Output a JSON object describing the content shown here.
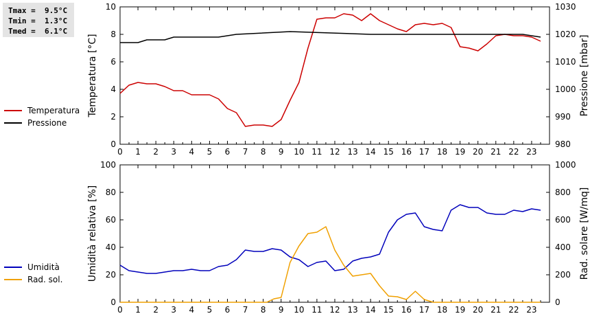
{
  "stats": {
    "tmax": "Tmax =  9.5°C",
    "tmin": "Tmin =  1.3°C",
    "tmed": "Tmed =  6.1°C"
  },
  "legend_top": [
    {
      "label": "Temperatura",
      "color": "#cc0000"
    },
    {
      "label": "Pressione",
      "color": "#000000"
    }
  ],
  "legend_bottom": [
    {
      "label": "Umidità",
      "color": "#0000bb"
    },
    {
      "label": "Rad. sol.",
      "color": "#f0a000"
    }
  ],
  "chart_data": [
    {
      "type": "line",
      "ylabel": "Temperatura [°C]",
      "y2label": "Pressione [mbar]",
      "xlim": [
        0,
        24
      ],
      "ylim": [
        0,
        10
      ],
      "y2lim": [
        980,
        1030
      ],
      "xticks": [
        "0",
        "1",
        "2",
        "3",
        "4",
        "5",
        "6",
        "7",
        "8",
        "9",
        "10",
        "11",
        "12",
        "13",
        "14",
        "15",
        "16",
        "17",
        "18",
        "19",
        "20",
        "21",
        "22",
        "23"
      ],
      "yticks": [
        "0",
        "2",
        "4",
        "6",
        "8",
        "10"
      ],
      "y2ticks": [
        "980",
        "990",
        "1000",
        "1010",
        "1020",
        "1030"
      ],
      "series": [
        {
          "name": "Temperatura",
          "axis": "left",
          "color": "#cc0000",
          "x": [
            0,
            0.5,
            1,
            1.5,
            2,
            2.5,
            3,
            3.5,
            4,
            4.5,
            5,
            5.5,
            6,
            6.5,
            7,
            7.5,
            8,
            8.5,
            9,
            9.5,
            10,
            10.5,
            11,
            11.5,
            12,
            12.5,
            13,
            13.5,
            14,
            14.5,
            15,
            15.5,
            16,
            16.5,
            17,
            17.5,
            18,
            18.5,
            19,
            19.5,
            20,
            20.5,
            21,
            21.5,
            22,
            22.5,
            23,
            23.5
          ],
          "y": [
            3.7,
            4.3,
            4.5,
            4.4,
            4.4,
            4.2,
            3.9,
            3.9,
            3.6,
            3.6,
            3.6,
            3.3,
            2.6,
            2.3,
            1.3,
            1.4,
            1.4,
            1.3,
            1.8,
            3.2,
            4.5,
            7.0,
            9.1,
            9.2,
            9.2,
            9.5,
            9.4,
            9.0,
            9.5,
            9.0,
            8.7,
            8.4,
            8.2,
            8.7,
            8.8,
            8.7,
            8.8,
            8.5,
            7.1,
            7.0,
            6.8,
            7.3,
            7.9,
            8.0,
            7.9,
            7.9,
            7.8,
            7.5
          ]
        },
        {
          "name": "Pressione",
          "axis": "right",
          "color": "#000000",
          "x": [
            0,
            1,
            1.5,
            2.5,
            3,
            5.5,
            6.5,
            9.5,
            14,
            22.5,
            23,
            23.5
          ],
          "y": [
            1017,
            1017,
            1018,
            1018,
            1019,
            1019,
            1020,
            1021,
            1020,
            1020,
            1019.5,
            1019
          ]
        }
      ]
    },
    {
      "type": "line",
      "ylabel": "Umidità relativa [%]",
      "y2label": "Rad. solare [W/mq]",
      "xlim": [
        0,
        24
      ],
      "ylim": [
        0,
        100
      ],
      "y2lim": [
        0,
        1000
      ],
      "xticks": [
        "0",
        "1",
        "2",
        "3",
        "4",
        "5",
        "6",
        "7",
        "8",
        "9",
        "10",
        "11",
        "12",
        "13",
        "14",
        "15",
        "16",
        "17",
        "18",
        "19",
        "20",
        "21",
        "22",
        "23"
      ],
      "yticks": [
        "0",
        "20",
        "40",
        "60",
        "80",
        "100"
      ],
      "y2ticks": [
        "0",
        "200",
        "400",
        "600",
        "800",
        "1000"
      ],
      "series": [
        {
          "name": "Umidità",
          "axis": "left",
          "color": "#0000bb",
          "x": [
            0,
            0.5,
            1,
            1.5,
            2,
            2.5,
            3,
            3.5,
            4,
            4.5,
            5,
            5.5,
            6,
            6.5,
            7,
            7.5,
            8,
            8.5,
            9,
            9.5,
            10,
            10.5,
            11,
            11.5,
            12,
            12.5,
            13,
            13.5,
            14,
            14.5,
            15,
            15.5,
            16,
            16.5,
            17,
            17.5,
            18,
            18.5,
            19,
            19.5,
            20,
            20.5,
            21,
            21.5,
            22,
            22.5,
            23,
            23.5
          ],
          "y": [
            27,
            23,
            22,
            21,
            21,
            22,
            23,
            23,
            24,
            23,
            23,
            26,
            27,
            31,
            38,
            37,
            37,
            39,
            38,
            33,
            31,
            26,
            29,
            30,
            23,
            24,
            30,
            32,
            33,
            35,
            51,
            60,
            64,
            65,
            55,
            53,
            52,
            67,
            71,
            69,
            69,
            65,
            64,
            64,
            67,
            66,
            68,
            67
          ]
        },
        {
          "name": "Rad. sol.",
          "axis": "right",
          "color": "#f0a000",
          "x": [
            0,
            1,
            2,
            3,
            4,
            5,
            6,
            7,
            8,
            8.2,
            8.6,
            9,
            9.5,
            10,
            10.5,
            11,
            11.5,
            12,
            12.5,
            13,
            13.5,
            14,
            14.5,
            15,
            15.5,
            16,
            16.5,
            17,
            17.5,
            18,
            19,
            20,
            21,
            22,
            23,
            23.5
          ],
          "y": [
            0,
            0,
            0,
            0,
            0,
            0,
            0,
            0,
            0,
            0,
            25,
            35,
            290,
            410,
            500,
            510,
            550,
            380,
            270,
            190,
            200,
            210,
            120,
            45,
            40,
            20,
            80,
            20,
            0,
            0,
            0,
            0,
            0,
            0,
            0,
            0
          ]
        }
      ]
    }
  ]
}
